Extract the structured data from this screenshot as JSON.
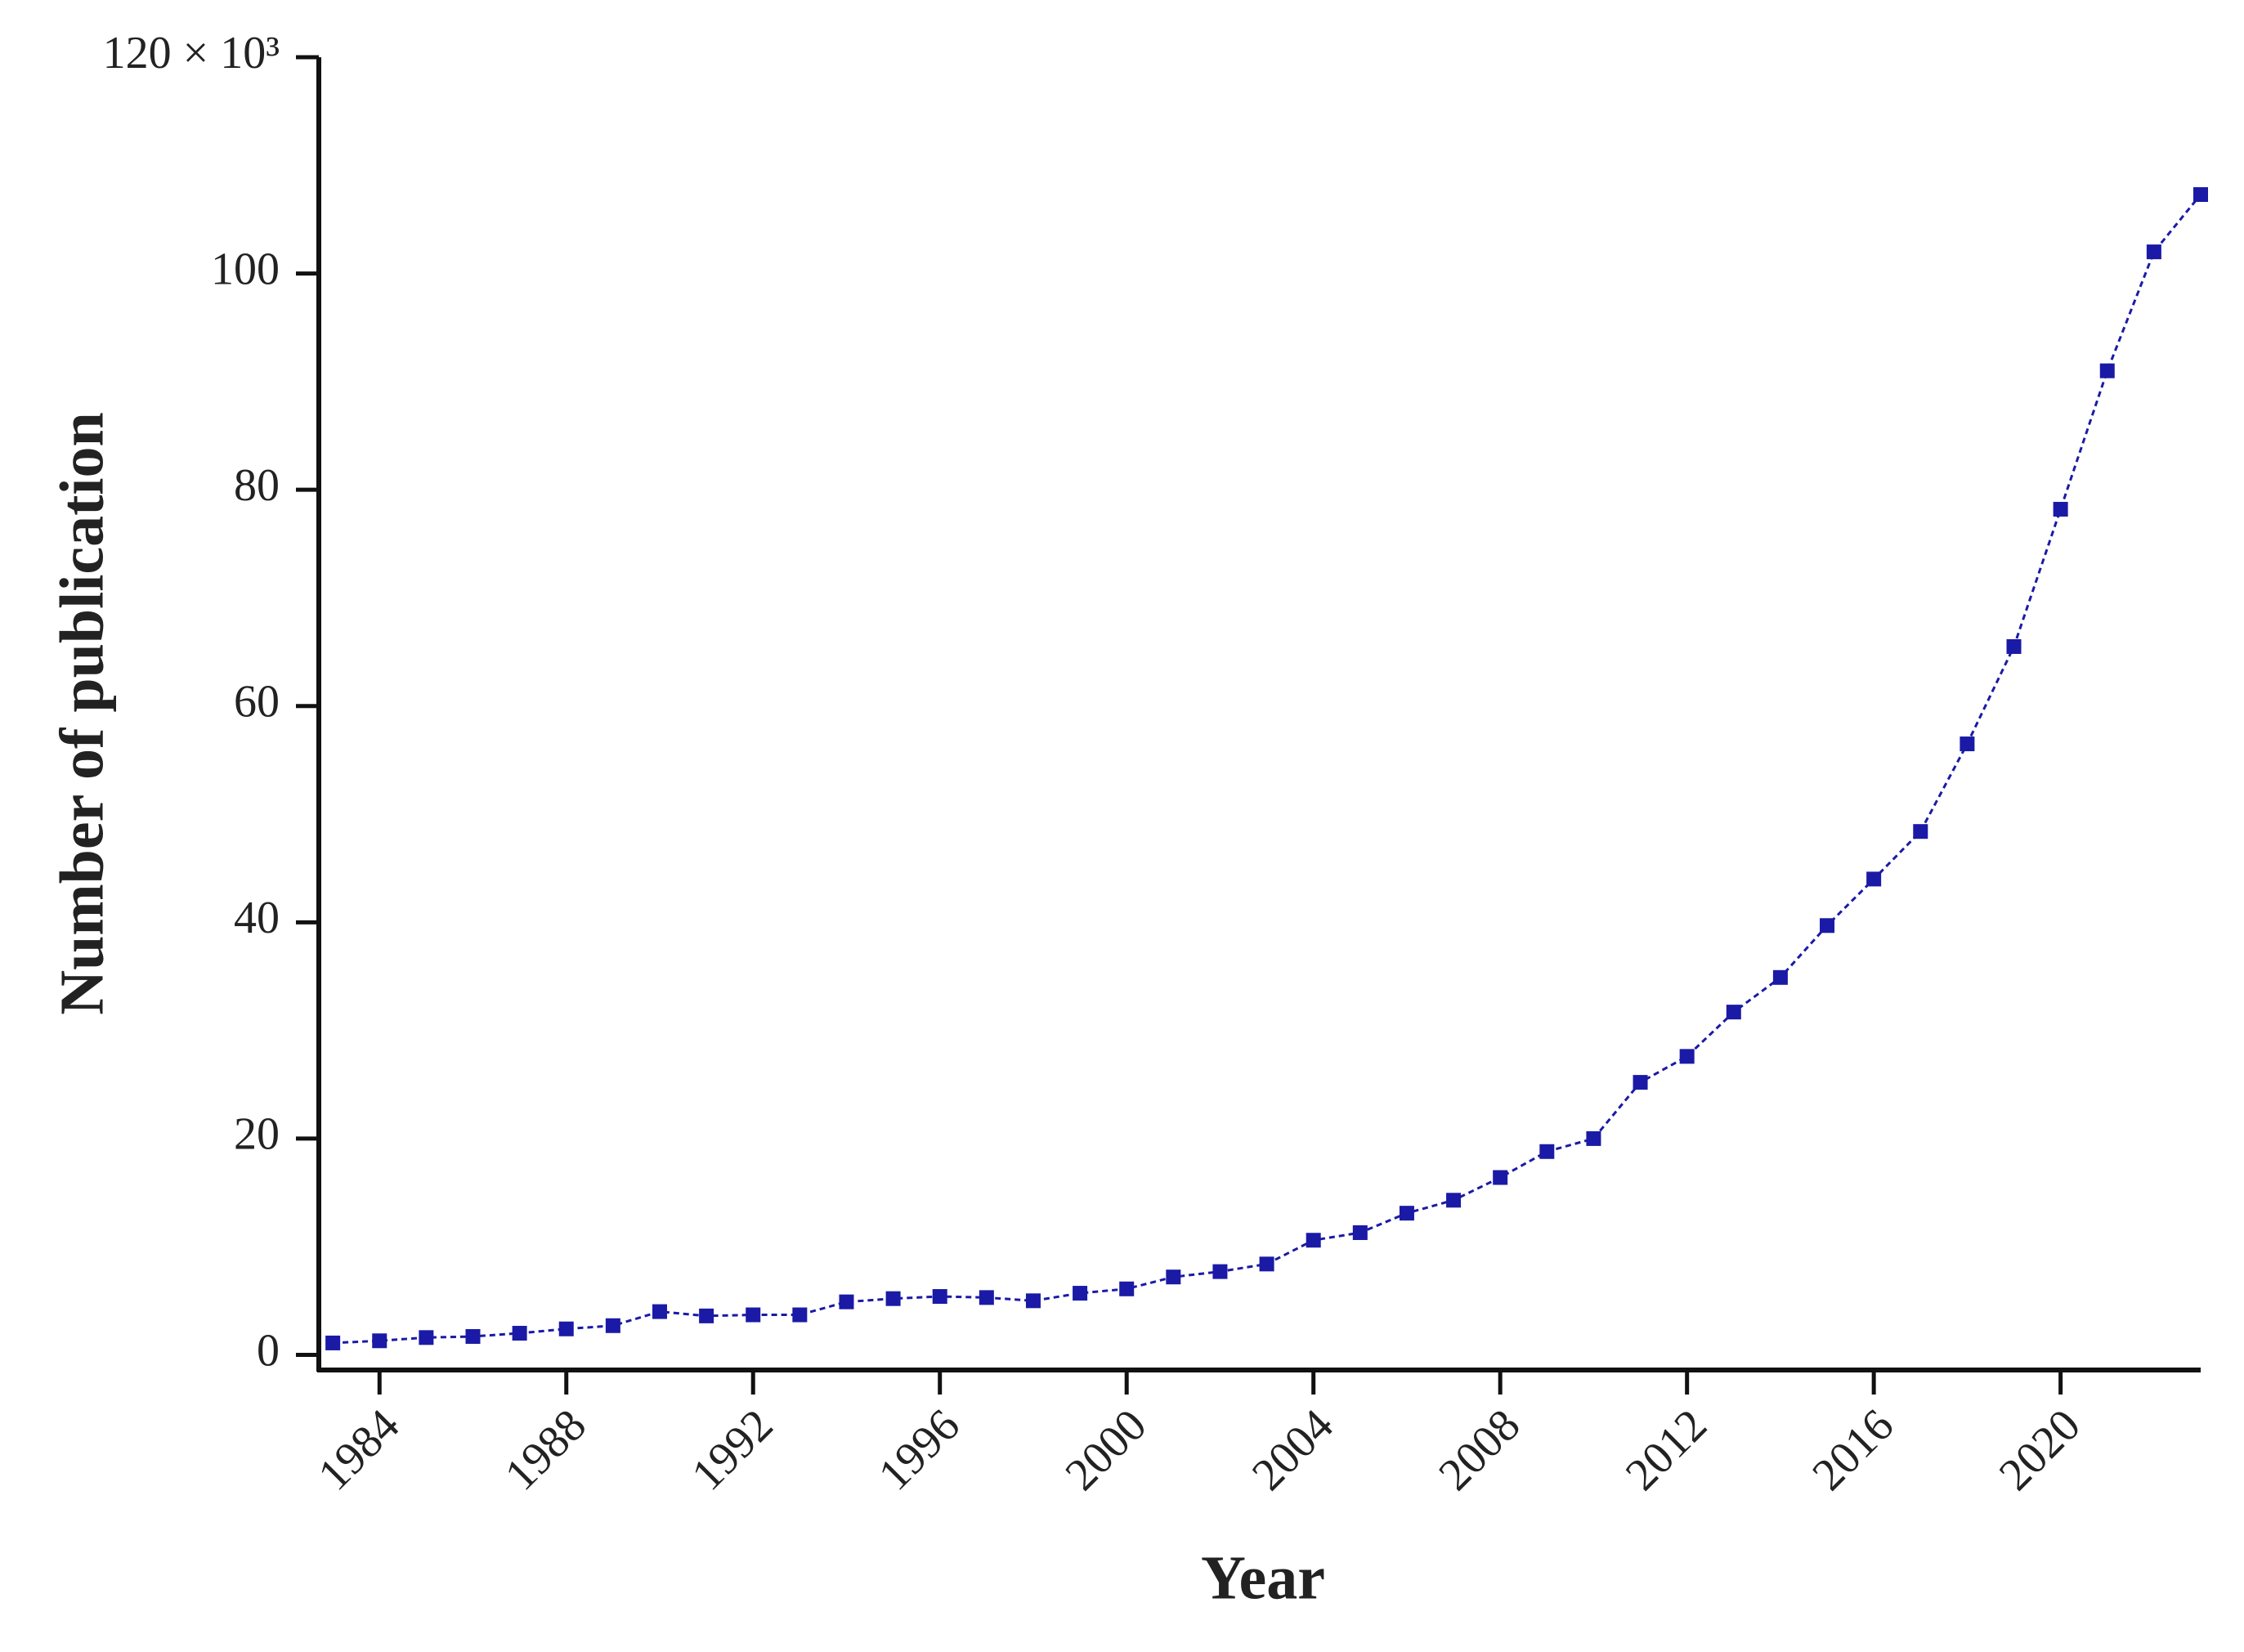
{
  "chart_data": {
    "type": "line",
    "x_label": "Year",
    "y_label": "Number of publication",
    "x": [
      1983,
      1984,
      1985,
      1986,
      1987,
      1988,
      1989,
      1990,
      1991,
      1992,
      1993,
      1994,
      1995,
      1996,
      1997,
      1998,
      1999,
      2000,
      2001,
      2002,
      2003,
      2004,
      2005,
      2006,
      2007,
      2008,
      2009,
      2010,
      2011,
      2012,
      2013,
      2014,
      2015,
      2016,
      2017,
      2018,
      2019,
      2020,
      2021,
      2022,
      2023
    ],
    "values": [
      1.1,
      1.3,
      1.6,
      1.7,
      2.0,
      2.4,
      2.7,
      4.0,
      3.6,
      3.7,
      3.7,
      4.9,
      5.2,
      5.4,
      5.3,
      5.0,
      5.7,
      6.1,
      7.2,
      7.7,
      8.4,
      10.6,
      11.3,
      13.1,
      14.3,
      16.4,
      18.8,
      20.0,
      25.2,
      27.6,
      31.7,
      34.9,
      39.7,
      44.0,
      48.4,
      56.5,
      65.5,
      78.2,
      91.0,
      102.0,
      107.3
    ],
    "color": "#1a1aa6",
    "xlim": [
      1982.7,
      2023
    ],
    "ylim": [
      -1.4,
      120
    ],
    "xticks": [
      1984,
      1988,
      1992,
      1996,
      2000,
      2004,
      2008,
      2012,
      2016,
      2020
    ],
    "yticks": [
      0,
      20,
      40,
      60,
      80,
      100,
      {
        "value": 120,
        "label": "120 × 10³"
      }
    ]
  }
}
